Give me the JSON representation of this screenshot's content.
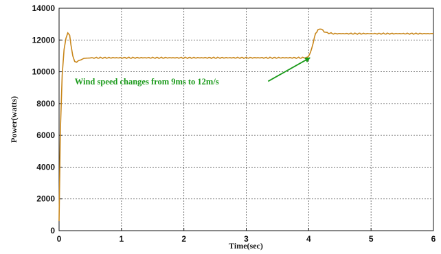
{
  "chart_data": {
    "type": "line",
    "title": "",
    "xlabel": "Time(sec)",
    "ylabel": "Power(watts)",
    "xlim": [
      0,
      6
    ],
    "ylim": [
      0,
      14000
    ],
    "xticks": [
      "0",
      "1",
      "2",
      "3",
      "4",
      "5",
      "6"
    ],
    "yticks": [
      "0",
      "2000",
      "4000",
      "6000",
      "8000",
      "10000",
      "12000",
      "14000"
    ],
    "grid": true,
    "series": [
      {
        "name": "",
        "color": "#c8861a",
        "x": [
          0,
          0.02,
          0.05,
          0.08,
          0.11,
          0.14,
          0.17,
          0.19,
          0.22,
          0.25,
          0.28,
          0.31,
          0.35,
          0.4,
          0.5,
          0.6,
          1.0,
          1.5,
          2.0,
          2.5,
          3.0,
          3.5,
          3.9,
          3.98,
          4.03,
          4.07,
          4.11,
          4.15,
          4.2,
          4.25,
          4.3,
          4.4,
          4.5,
          5.0,
          5.5,
          6.0
        ],
        "y": [
          600,
          6200,
          9800,
          11400,
          12100,
          12450,
          12300,
          11700,
          11000,
          10650,
          10600,
          10700,
          10750,
          10850,
          10870,
          10880,
          10880,
          10880,
          10880,
          10880,
          10880,
          10880,
          10880,
          10900,
          11200,
          11800,
          12400,
          12650,
          12700,
          12500,
          12450,
          12400,
          12400,
          12400,
          12400,
          12400
        ]
      }
    ],
    "annotation": {
      "text": "Wind speed changes from 9ms to 12m/s",
      "color": "#1a9a1a",
      "text_x": 0.25,
      "text_y": 9200,
      "arrow_from": [
        3.35,
        9400
      ],
      "arrow_to": [
        4.02,
        10880
      ]
    }
  }
}
